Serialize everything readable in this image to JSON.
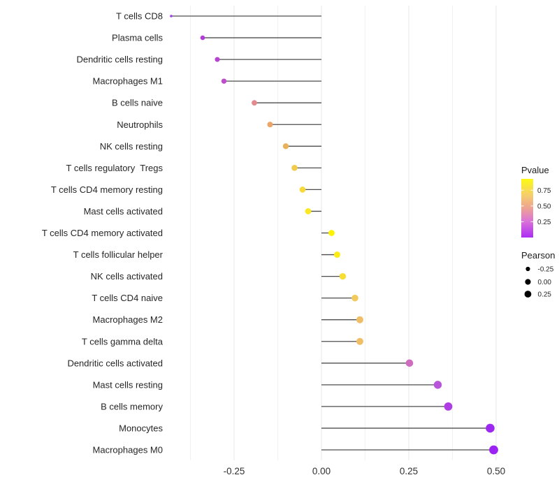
{
  "chart_data": {
    "type": "scatter",
    "variant": "lollipop",
    "orientation": "horizontal",
    "title": "",
    "xlabel": "",
    "ylabel": "",
    "baseline_x": 0,
    "x_axis": {
      "tick_labels": [
        "-0.25",
        "0.00",
        "0.25",
        "0.50"
      ],
      "tick_values": [
        -0.25,
        0.0,
        0.25,
        0.5
      ],
      "minor_gridlines": [
        -0.375,
        -0.125,
        0.125,
        0.375
      ],
      "range": [
        -0.475,
        0.54
      ],
      "grid": "on"
    },
    "categories": [
      "T cells CD8",
      "Plasma cells",
      "Dendritic cells resting",
      "Macrophages M1",
      "B cells naive",
      "Neutrophils",
      "NK cells resting",
      "T cells regulatory  Tregs",
      "T cells CD4 memory resting",
      "Mast cells activated",
      "T cells CD4 memory activated",
      "T cells follicular helper",
      "NK cells activated",
      "T cells CD4 naive",
      "Macrophages M2",
      "T cells gamma delta",
      "Dendritic cells activated",
      "Mast cells resting",
      "B cells memory",
      "Monocytes",
      "Macrophages M0"
    ],
    "points": [
      {
        "label": "T cells CD8",
        "pearson": -0.43,
        "dot_color": "#A338EC",
        "dot_radius": 1.8
      },
      {
        "label": "Plasma cells",
        "pearson": -0.34,
        "dot_color": "#B23CD9",
        "dot_radius": 3.3
      },
      {
        "label": "Dendritic cells resting",
        "pearson": -0.298,
        "dot_color": "#B843D3",
        "dot_radius": 3.5
      },
      {
        "label": "Macrophages M1",
        "pearson": -0.279,
        "dot_color": "#BF4CCB",
        "dot_radius": 3.7
      },
      {
        "label": "B cells naive",
        "pearson": -0.192,
        "dot_color": "#E28A8E",
        "dot_radius": 3.9
      },
      {
        "label": "Neutrophils",
        "pearson": -0.147,
        "dot_color": "#ECA566",
        "dot_radius": 4.0
      },
      {
        "label": "NK cells resting",
        "pearson": -0.102,
        "dot_color": "#E9B159",
        "dot_radius": 4.2
      },
      {
        "label": "T cells regulatory  Tregs",
        "pearson": -0.077,
        "dot_color": "#F3CB4A",
        "dot_radius": 4.3
      },
      {
        "label": "T cells CD4 memory resting",
        "pearson": -0.054,
        "dot_color": "#F7DA3A",
        "dot_radius": 4.35
      },
      {
        "label": "Mast cells activated",
        "pearson": -0.038,
        "dot_color": "#FBE722",
        "dot_radius": 4.4
      },
      {
        "label": "T cells CD4 memory activated",
        "pearson": 0.029,
        "dot_color": "#FDF303",
        "dot_radius": 4.4
      },
      {
        "label": "T cells follicular helper",
        "pearson": 0.045,
        "dot_color": "#FBEC15",
        "dot_radius": 4.5
      },
      {
        "label": "NK cells activated",
        "pearson": 0.061,
        "dot_color": "#F7DE33",
        "dot_radius": 4.65
      },
      {
        "label": "T cells CD4 naive",
        "pearson": 0.096,
        "dot_color": "#F2C95B",
        "dot_radius": 4.8
      },
      {
        "label": "Macrophages M2",
        "pearson": 0.11,
        "dot_color": "#F0BE66",
        "dot_radius": 5.0
      },
      {
        "label": "T cells gamma delta",
        "pearson": 0.11,
        "dot_color": "#F0BE66",
        "dot_radius": 5.0
      },
      {
        "label": "Dendritic cells activated",
        "pearson": 0.252,
        "dot_color": "#D06CC0",
        "dot_radius": 5.3
      },
      {
        "label": "Mast cells resting",
        "pearson": 0.333,
        "dot_color": "#B855DA",
        "dot_radius": 5.7
      },
      {
        "label": "B cells memory",
        "pearson": 0.363,
        "dot_color": "#AE3EE4",
        "dot_radius": 5.9
      },
      {
        "label": "Monocytes",
        "pearson": 0.483,
        "dot_color": "#9D28F0",
        "dot_radius": 6.3
      },
      {
        "label": "Macrophages M0",
        "pearson": 0.493,
        "dot_color": "#9C22F3",
        "dot_radius": 6.4
      }
    ],
    "legend": {
      "position": "right",
      "pvalue": {
        "title": "Pvalue",
        "tick_labels": [
          "0.75",
          "0.50",
          "0.25"
        ],
        "tick_values": [
          0.75,
          0.5,
          0.25
        ],
        "bar_value_top": 0.93,
        "bar_value_bottom": 0.0,
        "gradient_stops": [
          "#FCFA12",
          "#F5CE6E",
          "#EDA392",
          "#DB73D8",
          "#AC2CF2"
        ],
        "gradient_offsets": [
          0,
          0.28,
          0.5,
          0.72,
          1
        ]
      },
      "pearson": {
        "title": "Pearson",
        "dot_color": "#000000",
        "items": [
          {
            "label": "-0.25",
            "radius": 3.1
          },
          {
            "label": "0.00",
            "radius": 4.1
          },
          {
            "label": "0.25",
            "radius": 4.9
          }
        ]
      }
    },
    "colors": {
      "background": "#FFFFFF",
      "stem": "#4D4D4D",
      "grid_major": "#E7E7E7",
      "grid_minor": "#F2F2F2",
      "axis_text": "#303030",
      "label_text": "#262626"
    }
  }
}
